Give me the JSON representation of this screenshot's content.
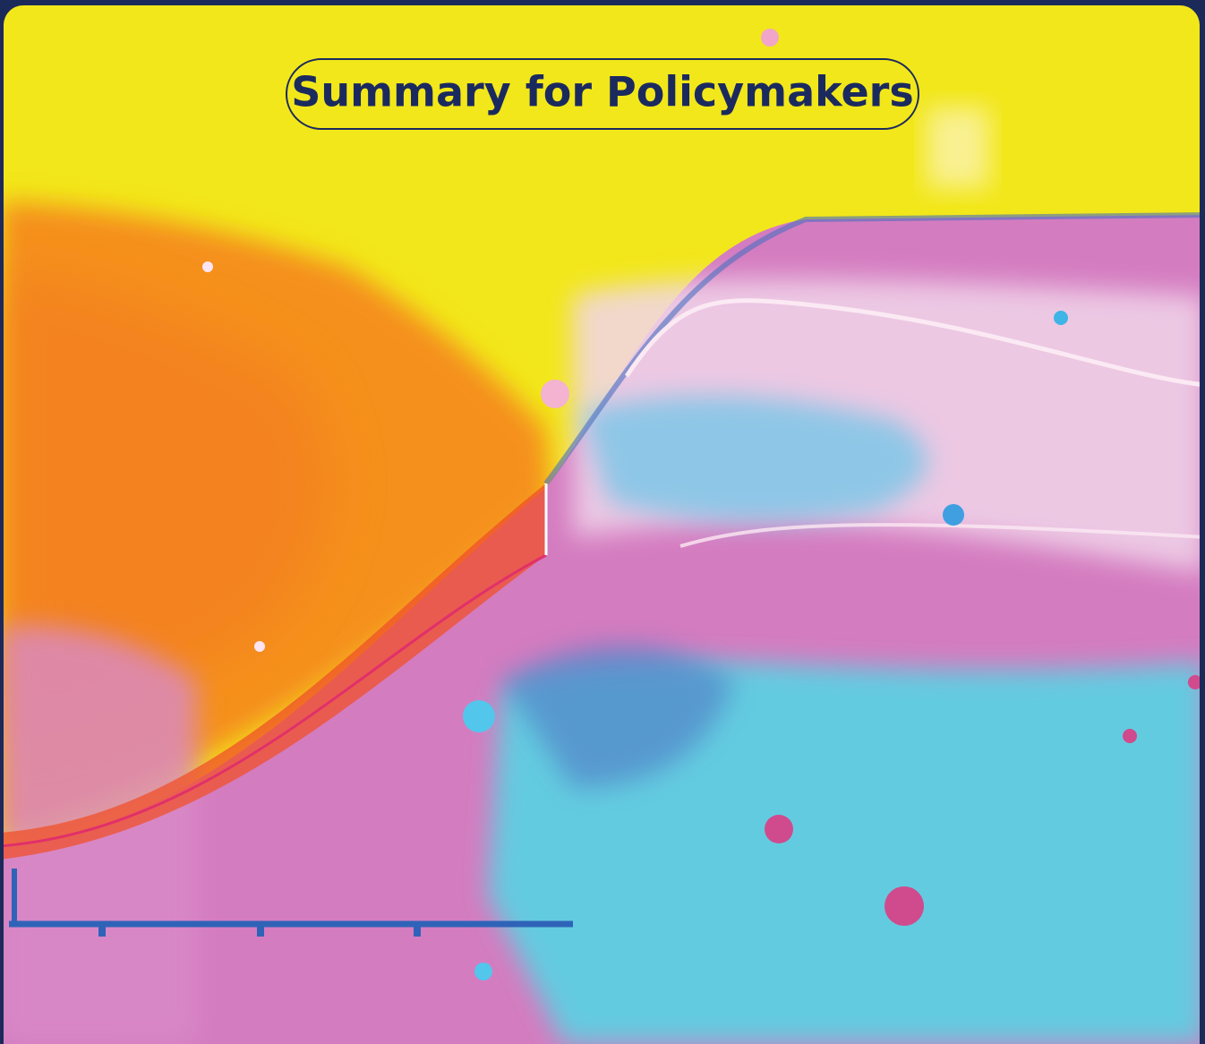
{
  "title": "Summary for Policymakers"
}
